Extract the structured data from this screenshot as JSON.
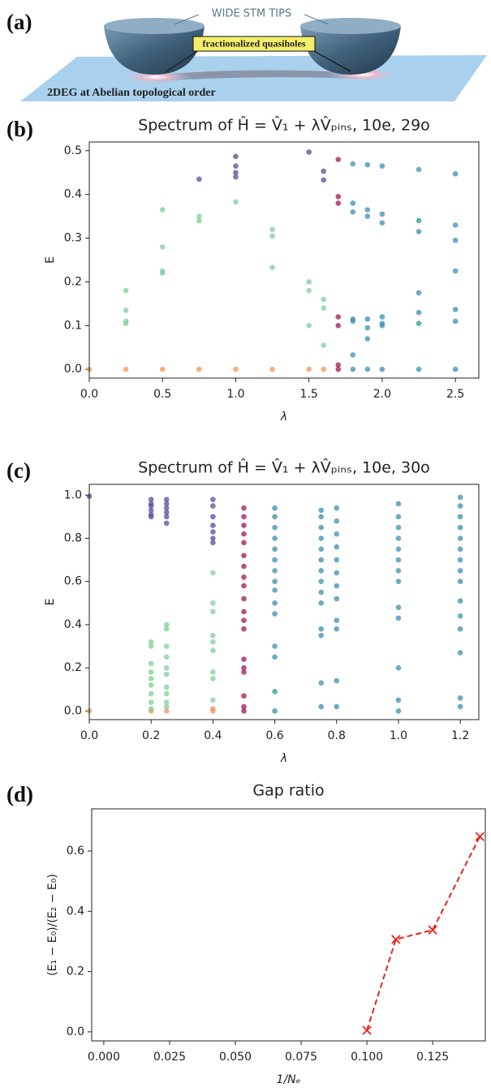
{
  "figure": {
    "panels": [
      "(a)",
      "(b)",
      "(c)",
      "(d)"
    ],
    "illustration": {
      "tips_label": "WIDE STM TIPS",
      "quasiholes_label": "fractionalized quasiholes",
      "substrate_label": "2DEG at Abelian topological order"
    }
  },
  "chart_data": [
    {
      "type": "scatter",
      "title": "Spectrum of Ĥ = V̂₁ + λV̂ₚᵢₙₛ, 10e, 29o",
      "xlabel": "λ",
      "ylabel": "E",
      "xlim": [
        0,
        2.66
      ],
      "ylim": [
        -0.02,
        0.52
      ],
      "xticks": [
        {
          "value": 0,
          "label": "0.0"
        },
        0.5,
        {
          "value": 1,
          "label": "1.0"
        },
        1.5,
        {
          "value": 2,
          "label": "2.0"
        },
        2.5
      ],
      "yticks": [
        {
          "value": 0,
          "label": "0.0"
        },
        0.1,
        0.2,
        0.3,
        0.4,
        0.5
      ],
      "series": [
        {
          "color": "#f0955a",
          "x": [
            0,
            0.25,
            0.5,
            0.75,
            1,
            1.25,
            1.5,
            1.6
          ],
          "values": [
            0,
            0,
            0,
            0,
            0,
            0,
            0,
            0
          ]
        },
        {
          "color": "#7fcf9a",
          "x": [
            0.25,
            0.25,
            0.25,
            0.25,
            0.5,
            0.5,
            0.5,
            0.5,
            0.75,
            0.75,
            1,
            1.25,
            1.25,
            1.25,
            1.5,
            1.5,
            1.5,
            1.6,
            1.6,
            1.6
          ],
          "values": [
            0.18,
            0.135,
            0.11,
            0.105,
            0.365,
            0.28,
            0.225,
            0.22,
            0.35,
            0.34,
            0.383,
            0.32,
            0.305,
            0.233,
            0.2,
            0.18,
            0.1,
            0.16,
            0.14,
            0.055
          ]
        },
        {
          "color": "#5a4a9e",
          "x": [
            0.75,
            1,
            1,
            1,
            1,
            1.5,
            1.6,
            1.6
          ],
          "values": [
            0.435,
            0.487,
            0.465,
            0.45,
            0.44,
            0.497,
            0.453,
            0.433
          ]
        },
        {
          "color": "#a0155a",
          "x": [
            1.7,
            1.7,
            1.7,
            1.7,
            1.7,
            1.7,
            1.7
          ],
          "values": [
            0.48,
            0.395,
            0.38,
            0.12,
            0.1,
            0.01,
            0
          ]
        },
        {
          "color": "#3a8fb0",
          "x": [
            1.8,
            1.8,
            1.8,
            1.8,
            1.8,
            1.8,
            1.8,
            1.9,
            1.9,
            1.9,
            1.9,
            1.9,
            1.9,
            1.9,
            2,
            2,
            2,
            2,
            2,
            2,
            2,
            2.25,
            2.25,
            2.25,
            2.25,
            2.25,
            2.25,
            2.25,
            2.5,
            2.5,
            2.5,
            2.5,
            2.5,
            2.5,
            2.5
          ],
          "values": [
            0.47,
            0.38,
            0.36,
            0.115,
            0.11,
            0.033,
            0,
            0.468,
            0.365,
            0.35,
            0.115,
            0.095,
            0.07,
            0,
            0.465,
            0.355,
            0.335,
            0.12,
            0.105,
            0.1,
            0,
            0.457,
            0.34,
            0.315,
            0.175,
            0.13,
            0.105,
            0,
            0.447,
            0.33,
            0.295,
            0.225,
            0.137,
            0.11,
            0
          ]
        }
      ]
    },
    {
      "type": "scatter",
      "title": "Spectrum of Ĥ = V̂₁ + λV̂ₚᵢₙₛ, 10e, 30o",
      "xlabel": "λ",
      "ylabel": "E",
      "xlim": [
        0,
        1.26
      ],
      "ylim": [
        -0.04,
        1.05
      ],
      "xticks": [
        {
          "value": 0,
          "label": "0.0"
        },
        0.2,
        0.4,
        0.6,
        0.8,
        {
          "value": 1,
          "label": "1.0"
        },
        1.2
      ],
      "yticks": [
        {
          "value": 0,
          "label": "0.0"
        },
        0.2,
        0.4,
        0.6,
        0.8,
        {
          "value": 1,
          "label": "1.0"
        }
      ],
      "series": [
        {
          "color": "#f0955a",
          "x": [
            0,
            0.2,
            0.25,
            0.4,
            0.4
          ],
          "values": [
            0,
            0,
            0,
            0,
            0.01
          ]
        },
        {
          "color": "#5a4a9e",
          "x": [
            0,
            0.2,
            0.2,
            0.2,
            0.2,
            0.2,
            0.2,
            0.25,
            0.25,
            0.25,
            0.25,
            0.25,
            0.25,
            0.4,
            0.4,
            0.4,
            0.4,
            0.4,
            0.4,
            0.4
          ],
          "values": [
            0.995,
            0.98,
            0.96,
            0.95,
            0.93,
            0.91,
            0.9,
            0.98,
            0.96,
            0.94,
            0.92,
            0.9,
            0.87,
            0.98,
            0.95,
            0.9,
            0.86,
            0.83,
            0.8,
            0.78
          ]
        },
        {
          "color": "#7fcf9a",
          "x": [
            0.2,
            0.2,
            0.2,
            0.2,
            0.2,
            0.2,
            0.2,
            0.2,
            0.2,
            0.25,
            0.25,
            0.25,
            0.25,
            0.25,
            0.25,
            0.25,
            0.25,
            0.25,
            0.25,
            0.4,
            0.4,
            0.4,
            0.4,
            0.4,
            0.4,
            0.4,
            0.4,
            0.4
          ],
          "values": [
            0.32,
            0.3,
            0.22,
            0.18,
            0.15,
            0.12,
            0.08,
            0.04,
            0.01,
            0.4,
            0.38,
            0.3,
            0.25,
            0.2,
            0.17,
            0.11,
            0.08,
            0.04,
            0.02,
            0.64,
            0.5,
            0.46,
            0.35,
            0.32,
            0.28,
            0.18,
            0.15,
            0.05
          ]
        },
        {
          "color": "#a0155a",
          "x": [
            0.5,
            0.5,
            0.5,
            0.5,
            0.5,
            0.5,
            0.5,
            0.5,
            0.5,
            0.5,
            0.5,
            0.5,
            0.5,
            0.5,
            0.5,
            0.5,
            0.5,
            0.5,
            0.5
          ],
          "values": [
            0.94,
            0.9,
            0.86,
            0.82,
            0.78,
            0.72,
            0.67,
            0.62,
            0.58,
            0.52,
            0.46,
            0.42,
            0.38,
            0.24,
            0.2,
            0.18,
            0.07,
            0.02,
            0
          ]
        },
        {
          "color": "#3a8fb0",
          "x": [
            0.6,
            0.6,
            0.6,
            0.6,
            0.6,
            0.6,
            0.6,
            0.6,
            0.6,
            0.6,
            0.6,
            0.6,
            0.6,
            0.6,
            0.6,
            0.75,
            0.75,
            0.75,
            0.75,
            0.75,
            0.75,
            0.75,
            0.75,
            0.75,
            0.75,
            0.75,
            0.75,
            0.75,
            0.75,
            0.8,
            0.8,
            0.8,
            0.8,
            0.8,
            0.8,
            0.8,
            0.8,
            0.8,
            0.8,
            0.8,
            0.8,
            1,
            1,
            1,
            1,
            1,
            1,
            1,
            1,
            1,
            1,
            1,
            1,
            1,
            1.2,
            1.2,
            1.2,
            1.2,
            1.2,
            1.2,
            1.2,
            1.2,
            1.2,
            1.2,
            1.2,
            1.2,
            1.2,
            1.2,
            1.2
          ],
          "values": [
            0.94,
            0.9,
            0.85,
            0.8,
            0.75,
            0.7,
            0.65,
            0.6,
            0.56,
            0.5,
            0.45,
            0.3,
            0.25,
            0.09,
            0,
            0.93,
            0.9,
            0.85,
            0.8,
            0.75,
            0.7,
            0.65,
            0.6,
            0.55,
            0.5,
            0.38,
            0.35,
            0.13,
            0.02,
            0.94,
            0.88,
            0.82,
            0.76,
            0.7,
            0.64,
            0.58,
            0.52,
            0.42,
            0.38,
            0.14,
            0.02,
            0.96,
            0.9,
            0.85,
            0.8,
            0.75,
            0.7,
            0.65,
            0.6,
            0.48,
            0.43,
            0.2,
            0.05,
            0,
            0.99,
            0.95,
            0.9,
            0.85,
            0.8,
            0.75,
            0.7,
            0.65,
            0.6,
            0.51,
            0.44,
            0.38,
            0.27,
            0.06,
            0.02
          ]
        }
      ]
    },
    {
      "type": "line",
      "title": "Gap ratio",
      "xlabel": "1/Nₑ",
      "ylabel": "(E₁ − E₀)/(E₂ − E₀)",
      "xlim": [
        -0.0046,
        0.145
      ],
      "ylim": [
        -0.03,
        0.74
      ],
      "xticks": [
        {
          "value": 0,
          "label": "0.000"
        },
        0.025,
        {
          "value": 0.05,
          "label": "0.050"
        },
        0.075,
        {
          "value": 0.1,
          "label": "0.100"
        },
        0.125
      ],
      "yticks": [
        {
          "value": 0,
          "label": "0.0"
        },
        0.2,
        0.4,
        0.6
      ],
      "x": [
        0.1,
        0.111,
        0.125,
        0.1429
      ],
      "series": [
        {
          "color": "#e8231f",
          "marker": "x",
          "linestyle": "dashed",
          "values": [
            0.005,
            0.307,
            0.338,
            0.648
          ]
        }
      ]
    }
  ]
}
